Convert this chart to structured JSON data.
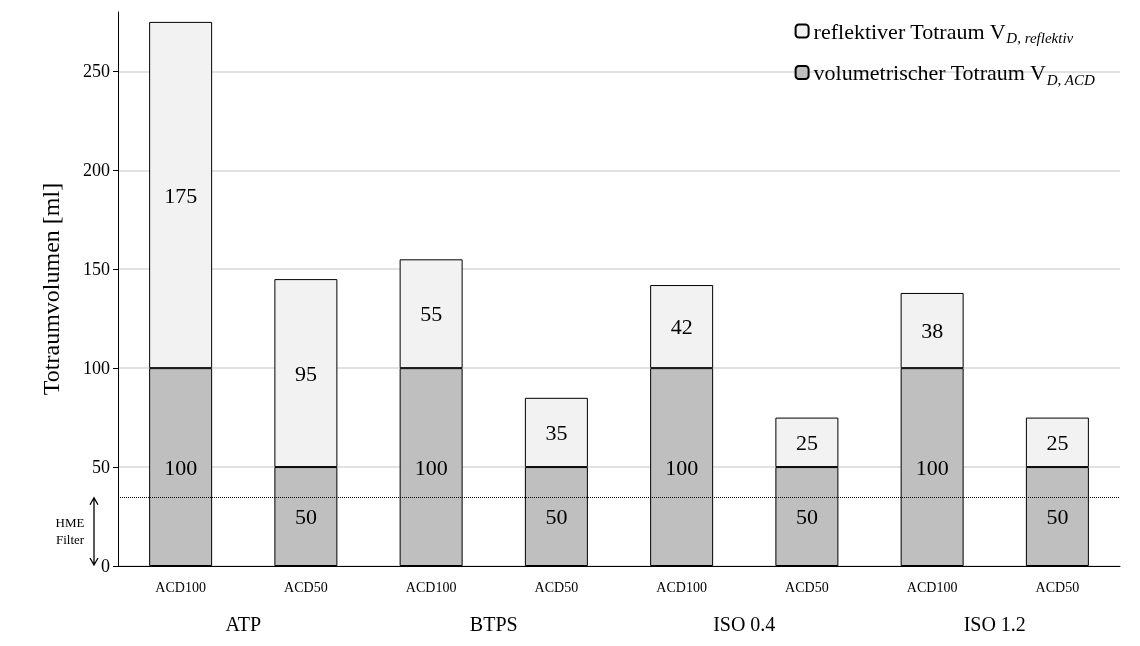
{
  "chart_data": {
    "type": "bar",
    "stacked": true,
    "data_labels": true,
    "ylabel": "Totraumvolumen [ml]",
    "categories": [
      "ACD100",
      "ACD50",
      "ACD100",
      "ACD50",
      "ACD100",
      "ACD50",
      "ACD100",
      "ACD50"
    ],
    "series": [
      {
        "name": "volumetrischer Totraum V$_{D, ACD}$",
        "color": "#bfbfbf",
        "values": [
          100,
          50,
          100,
          50,
          100,
          50,
          100,
          50
        ]
      },
      {
        "name": "reflektiver Totraum V$_{D, reflektiv}$",
        "color": "#f2f2f2",
        "values": [
          175,
          95,
          55,
          35,
          42,
          25,
          38,
          25
        ]
      }
    ],
    "ylim": [
      0,
      280
    ],
    "yticks": [
      0,
      50,
      100,
      150,
      200,
      250
    ],
    "grid": "y",
    "legend": "top right",
    "annotations": [
      "ATP",
      "BTPS",
      "ISO 0.4",
      "ISO 1.2"
    ],
    "ref_lines": [
      {
        "axis": "y",
        "value": 35,
        "label": "HME Filter",
        "line_style": "dotted",
        "color": "#000000"
      }
    ]
  }
}
